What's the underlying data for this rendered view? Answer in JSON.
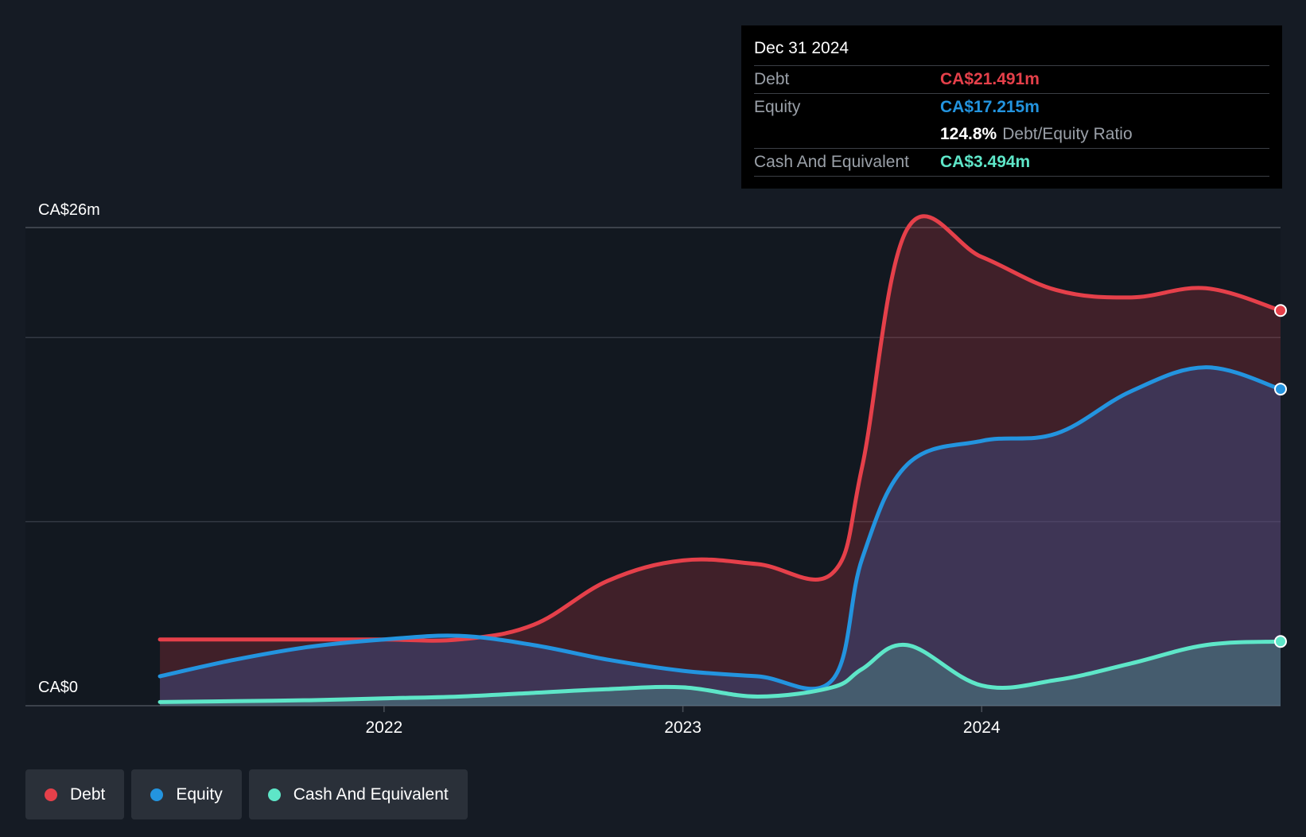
{
  "chart_data": {
    "type": "area",
    "title": "",
    "y_axis": {
      "min": 0,
      "max": 26,
      "top_label": "CA$26m",
      "bottom_label": "CA$0",
      "unit": "CA$m"
    },
    "x_axis": {
      "ticks": [
        {
          "label": "2022",
          "x": 2022.0
        },
        {
          "label": "2023",
          "x": 2023.0
        },
        {
          "label": "2024",
          "x": 2024.0
        }
      ]
    },
    "x": [
      2021.25,
      2021.5,
      2021.75,
      2022.0,
      2022.25,
      2022.5,
      2022.75,
      2023.0,
      2023.25,
      2023.5,
      2023.6,
      2023.75,
      2024.0,
      2024.25,
      2024.5,
      2024.75,
      2025.0
    ],
    "series": [
      {
        "name": "Debt",
        "color": "#e5404a",
        "values": [
          3.6,
          3.6,
          3.6,
          3.6,
          3.6,
          4.4,
          6.8,
          7.9,
          7.7,
          7.2,
          13.0,
          25.9,
          24.4,
          22.6,
          22.2,
          22.7,
          21.491
        ]
      },
      {
        "name": "Equity",
        "color": "#2394df",
        "values": [
          1.6,
          2.5,
          3.2,
          3.6,
          3.8,
          3.3,
          2.5,
          1.9,
          1.6,
          1.4,
          8.0,
          13.1,
          14.4,
          14.8,
          17.1,
          18.4,
          17.215
        ]
      },
      {
        "name": "Cash And Equivalent",
        "color": "#5ee6c8",
        "values": [
          0.2,
          0.25,
          0.3,
          0.4,
          0.5,
          0.7,
          0.9,
          1.0,
          0.5,
          1.0,
          2.0,
          3.3,
          1.1,
          1.4,
          2.3,
          3.3,
          3.494
        ]
      }
    ],
    "legend_position": "bottom-left",
    "grid": true
  },
  "tooltip": {
    "date": "Dec 31 2024",
    "debt_label": "Debt",
    "debt_value": "CA$21.491m",
    "equity_label": "Equity",
    "equity_value": "CA$17.215m",
    "ratio_value": "124.8%",
    "ratio_label": "Debt/Equity Ratio",
    "cash_label": "Cash And Equivalent",
    "cash_value": "CA$3.494m"
  },
  "legend": [
    {
      "label": "Debt",
      "color": "#e5404a"
    },
    {
      "label": "Equity",
      "color": "#2394df"
    },
    {
      "label": "Cash And Equivalent",
      "color": "#5ee6c8"
    }
  ],
  "colors": {
    "background": "#151b24",
    "grid": "#3a4049"
  }
}
